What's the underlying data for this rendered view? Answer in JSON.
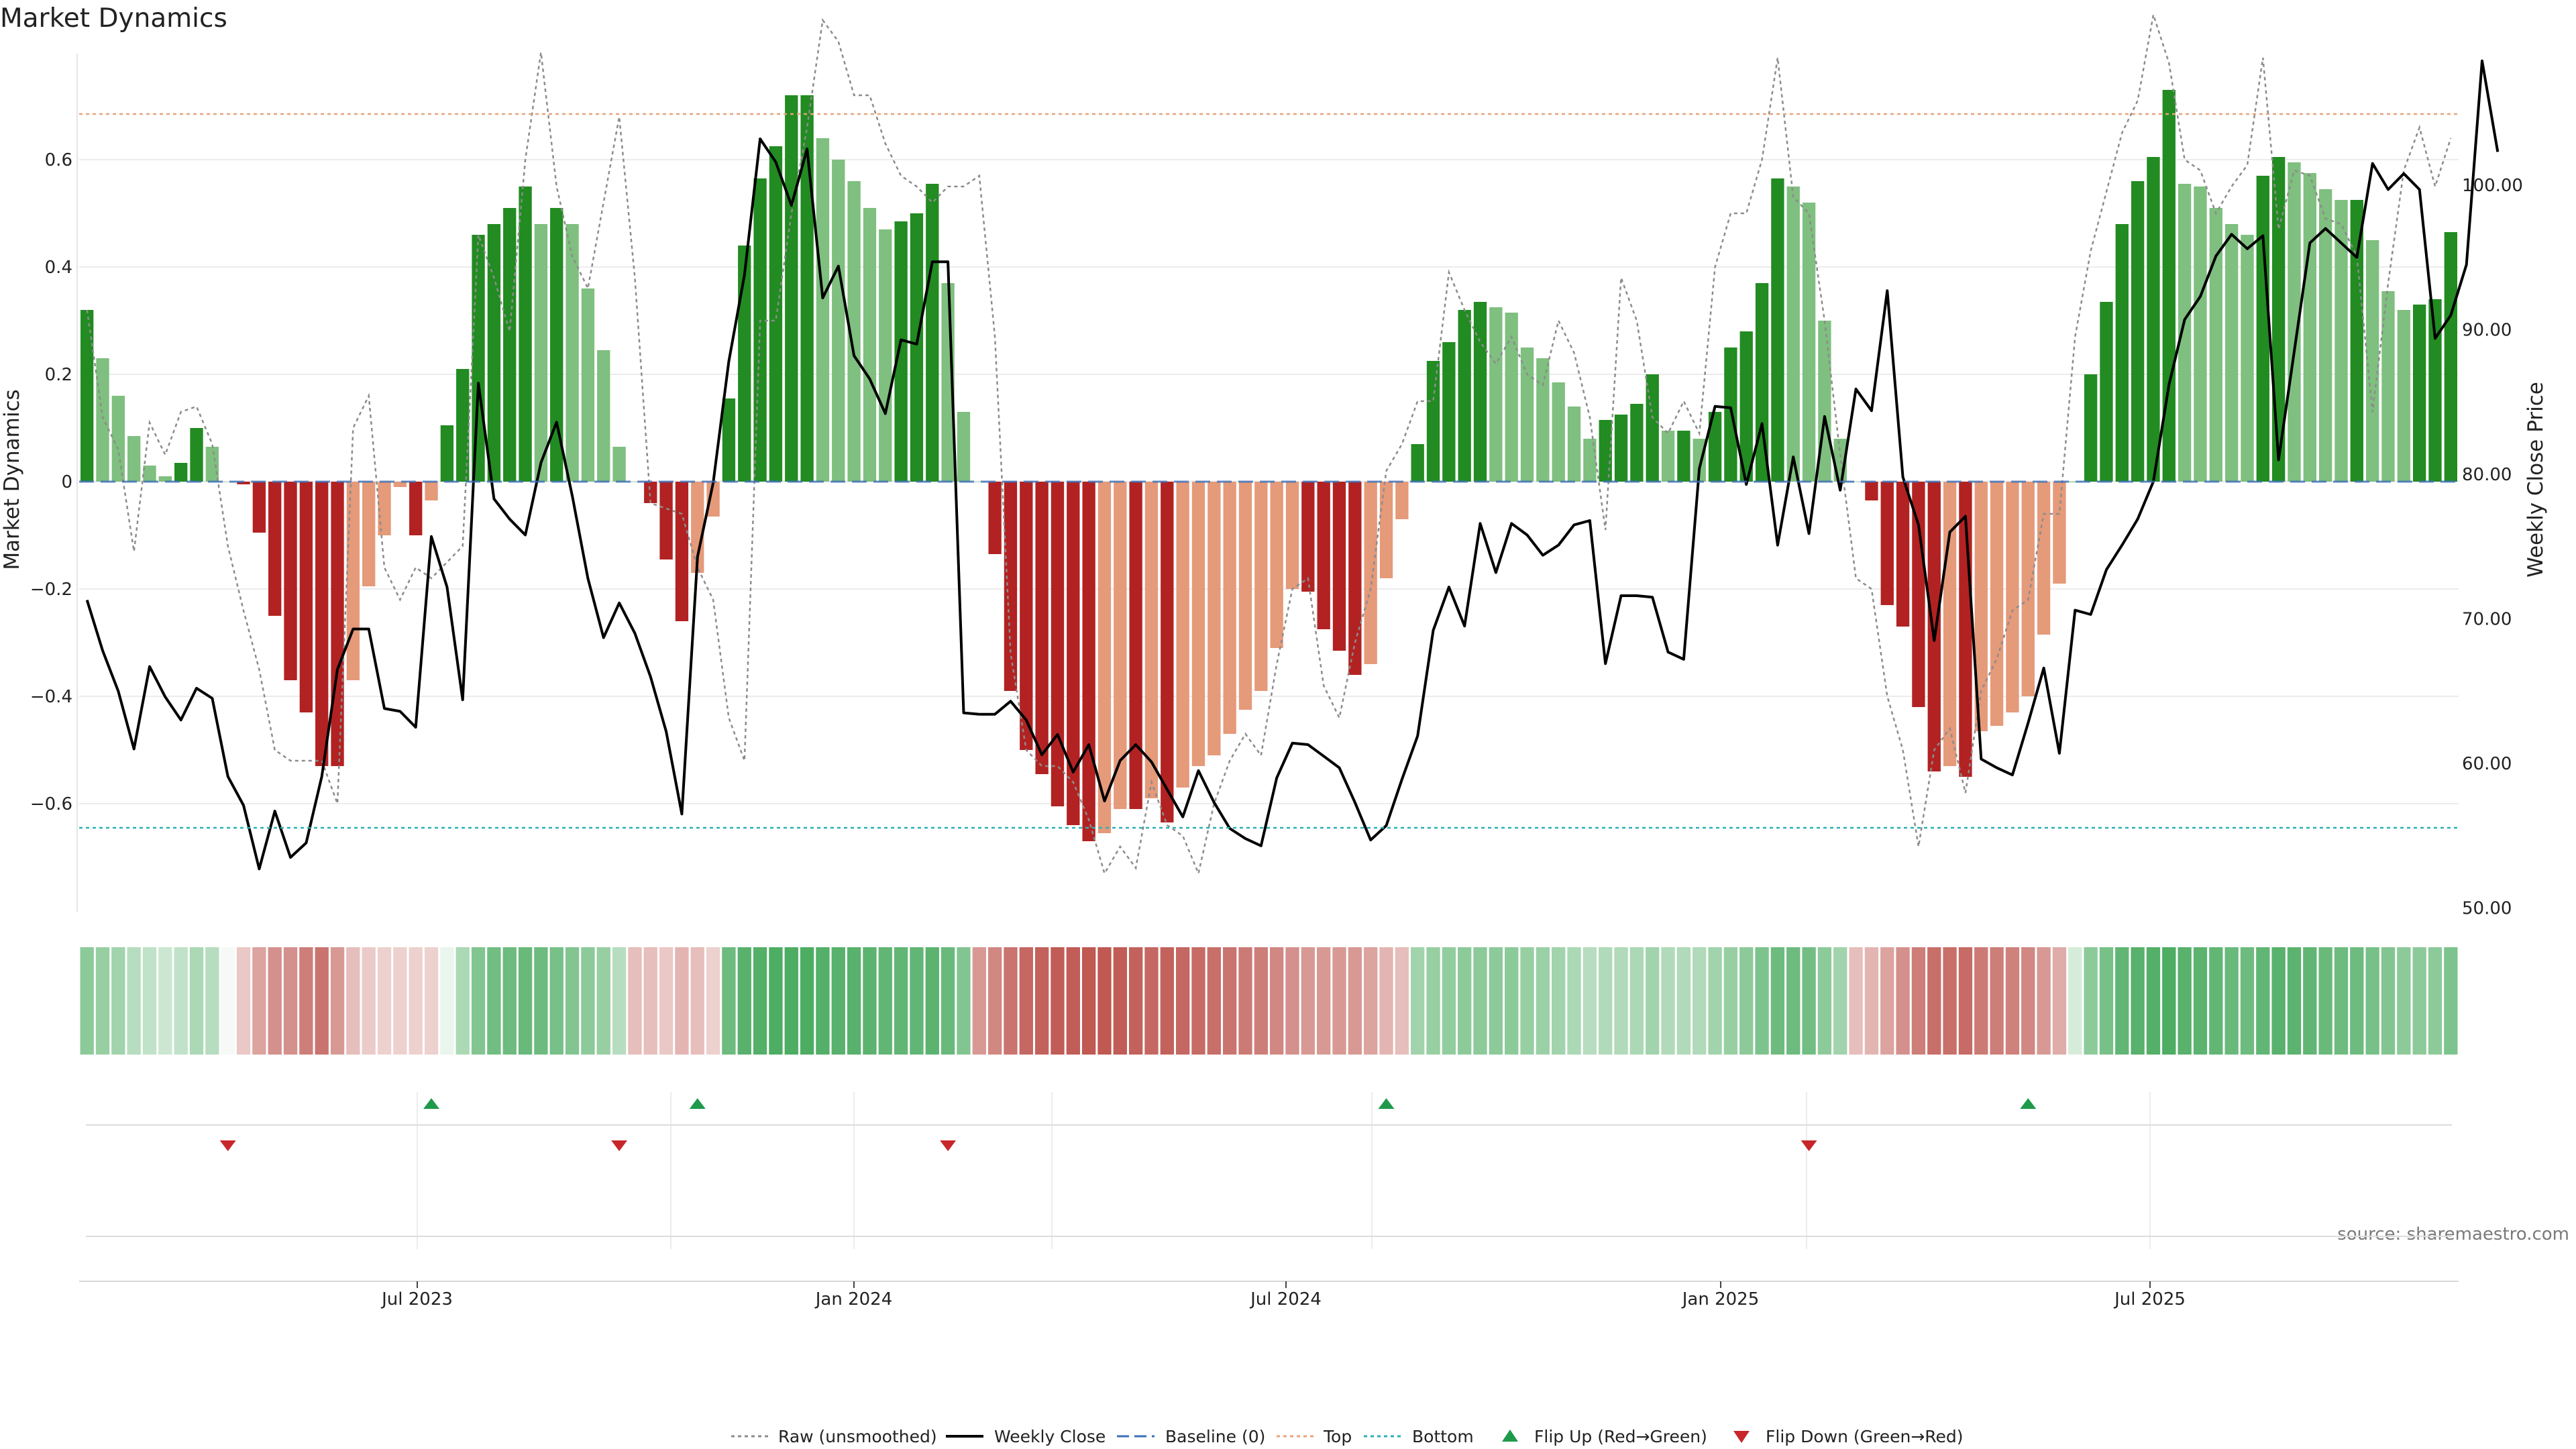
{
  "chart_data": {
    "type": "bar",
    "title": "Market Dynamics",
    "ylabel": "Market Dynamics",
    "y2label": "Weekly Close Price",
    "ylim": [
      -0.8,
      0.8
    ],
    "y2lim": [
      50,
      109
    ],
    "yticks": [
      "0.6",
      "0.4",
      "0.2",
      "0",
      "−0.2",
      "−0.4",
      "−0.6"
    ],
    "y2ticks": [
      "100.00",
      "90.00",
      "80.00",
      "70.00",
      "60.00",
      "50.00"
    ],
    "xticks": [
      "Jul 2023",
      "Jan 2024",
      "Jul 2024",
      "Jan 2025",
      "Jul 2025"
    ],
    "top_level": 0.685,
    "bottom_level": -0.645,
    "source": "source: sharemaestro.com",
    "colors": {
      "strong_up": "#228b22",
      "weak_up": "#7fbf7f",
      "strong_down": "#b22222",
      "weak_down": "#e59a7a",
      "line": "#000000",
      "raw": "#8c8c8c",
      "baseline": "#3b6fb6",
      "top": "#e8a47a",
      "bottom": "#2ab0b8",
      "flip_up": "#1e9a4a",
      "flip_down": "#c8262a"
    },
    "momentum": [
      0.32,
      0.23,
      0.16,
      0.085,
      0.03,
      0.01,
      0.035,
      0.1,
      0.065,
      0.0,
      -0.005,
      -0.095,
      -0.25,
      -0.37,
      -0.43,
      -0.53,
      -0.53,
      -0.37,
      -0.195,
      -0.1,
      -0.01,
      -0.1,
      -0.035,
      0.105,
      0.21,
      0.46,
      0.48,
      0.51,
      0.55,
      0.48,
      0.51,
      0.48,
      0.36,
      0.245,
      0.065,
      0.0,
      -0.04,
      -0.145,
      -0.26,
      -0.17,
      -0.065,
      0.155,
      0.44,
      0.565,
      0.625,
      0.72,
      0.72,
      0.64,
      0.6,
      0.56,
      0.51,
      0.47,
      0.485,
      0.5,
      0.555,
      0.37,
      0.13,
      0.0,
      -0.135,
      -0.39,
      -0.5,
      -0.545,
      -0.605,
      -0.64,
      -0.67,
      -0.655,
      -0.61,
      -0.61,
      -0.59,
      -0.635,
      -0.57,
      -0.53,
      -0.51,
      -0.47,
      -0.425,
      -0.39,
      -0.31,
      -0.2,
      -0.205,
      -0.275,
      -0.315,
      -0.36,
      -0.34,
      -0.18,
      -0.07,
      0.07,
      0.225,
      0.26,
      0.32,
      0.335,
      0.325,
      0.315,
      0.25,
      0.23,
      0.185,
      0.14,
      0.08,
      0.115,
      0.125,
      0.145,
      0.2,
      0.095,
      0.095,
      0.08,
      0.13,
      0.25,
      0.28,
      0.37,
      0.565,
      0.55,
      0.52,
      0.3,
      0.08,
      0.0,
      -0.035,
      -0.23,
      -0.27,
      -0.42,
      -0.54,
      -0.53,
      -0.55,
      -0.465,
      -0.455,
      -0.43,
      -0.4,
      -0.285,
      -0.19,
      0.0,
      0.2,
      0.335,
      0.48,
      0.56,
      0.605,
      0.73,
      0.555,
      0.55,
      0.51,
      0.48,
      0.46,
      0.57,
      0.605,
      0.595,
      0.575,
      0.545,
      0.525,
      0.525,
      0.45,
      0.355,
      0.32,
      0.33,
      0.34,
      0.465
    ],
    "raw": [
      0.32,
      0.12,
      0.06,
      -0.13,
      0.11,
      0.05,
      0.13,
      0.14,
      0.07,
      -0.12,
      -0.24,
      -0.35,
      -0.5,
      -0.52,
      -0.52,
      -0.52,
      -0.6,
      0.1,
      0.16,
      -0.16,
      -0.22,
      -0.16,
      -0.18,
      -0.15,
      -0.12,
      0.46,
      0.38,
      0.28,
      0.6,
      0.8,
      0.55,
      0.42,
      0.36,
      0.52,
      0.68,
      0.38,
      -0.04,
      -0.05,
      -0.06,
      -0.16,
      -0.22,
      -0.44,
      -0.52,
      0.3,
      0.3,
      0.5,
      0.66,
      0.86,
      0.82,
      0.72,
      0.72,
      0.63,
      0.57,
      0.55,
      0.52,
      0.55,
      0.55,
      0.57,
      0.27,
      -0.32,
      -0.5,
      -0.53,
      -0.53,
      -0.56,
      -0.63,
      -0.73,
      -0.68,
      -0.72,
      -0.56,
      -0.64,
      -0.66,
      -0.73,
      -0.6,
      -0.52,
      -0.47,
      -0.51,
      -0.34,
      -0.2,
      -0.18,
      -0.38,
      -0.44,
      -0.3,
      -0.2,
      0.02,
      0.07,
      0.15,
      0.15,
      0.39,
      0.32,
      0.26,
      0.22,
      0.27,
      0.2,
      0.18,
      0.3,
      0.24,
      0.12,
      -0.09,
      0.38,
      0.3,
      0.12,
      0.09,
      0.15,
      0.09,
      0.4,
      0.5,
      0.5,
      0.6,
      0.79,
      0.53,
      0.5,
      0.3,
      0.05,
      -0.18,
      -0.2,
      -0.4,
      -0.5,
      -0.68,
      -0.5,
      -0.46,
      -0.58,
      -0.39,
      -0.33,
      -0.24,
      -0.22,
      -0.06,
      -0.06,
      0.27,
      0.43,
      0.54,
      0.65,
      0.71,
      0.87,
      0.78,
      0.6,
      0.58,
      0.5,
      0.55,
      0.59,
      0.79,
      0.47,
      0.58,
      0.57,
      0.49,
      0.48,
      0.42,
      0.13,
      0.37,
      0.58,
      0.66,
      0.55,
      0.64
    ],
    "close": [
      71.3,
      67.8,
      65,
      61,
      66.7,
      64.6,
      63,
      65.2,
      64.5,
      59.1,
      57.1,
      52.7,
      56.7,
      53.5,
      54.5,
      59.1,
      66.5,
      69.3,
      69.3,
      63.8,
      63.6,
      62.5,
      75.7,
      72.2,
      64.4,
      86.3,
      78.3,
      76.9,
      75.8,
      80.8,
      83.6,
      78.5,
      72.8,
      68.7,
      71.1,
      69,
      66,
      62.2,
      56.5,
      74.3,
      79.4,
      87.8,
      93.8,
      103.2,
      101.6,
      98.6,
      102.5,
      92.2,
      94.4,
      88.2,
      86.6,
      84.2,
      89.3,
      89,
      94.7,
      94.7,
      63.5,
      63.4,
      63.4,
      64.3,
      63,
      60.6,
      62,
      59.4,
      61.3,
      57.4,
      60.2,
      61.3,
      60.1,
      58.2,
      56.3,
      59.5,
      57.3,
      55.5,
      54.8,
      54.3,
      59,
      61.4,
      61.3,
      60.5,
      59.7,
      57.3,
      54.7,
      55.7,
      58.9,
      61.9,
      69.2,
      72.2,
      69.5,
      76.6,
      73.2,
      76.6,
      75.8,
      74.4,
      75.1,
      76.5,
      76.8,
      66.9,
      71.6,
      71.6,
      71.5,
      67.7,
      67.2,
      80.4,
      84.7,
      84.6,
      79.3,
      83.5,
      75.1,
      81.2,
      75.9,
      84,
      78.9,
      85.9,
      84.4,
      92.7,
      79.8,
      76.5,
      68.5,
      76,
      77.1,
      60.3,
      59.7,
      59.2,
      62.8,
      66.6,
      60.7,
      70.6,
      70.3,
      73.4,
      75.1,
      76.9,
      79.5,
      86.2,
      90.7,
      92.3,
      95.1,
      96.6,
      95.6,
      96.5,
      81,
      88.5,
      96,
      97,
      96,
      95,
      101.5,
      99.7,
      100.8,
      99.7,
      89.4,
      91,
      94.5,
      108.6,
      102.3
    ],
    "heatmap": [
      0.55,
      0.5,
      0.45,
      0.35,
      0.3,
      0.25,
      0.3,
      0.4,
      0.35,
      0.05,
      -0.3,
      -0.5,
      -0.6,
      -0.6,
      -0.7,
      -0.75,
      -0.55,
      -0.35,
      -0.28,
      -0.25,
      -0.25,
      -0.25,
      -0.25,
      0.1,
      0.4,
      0.6,
      0.68,
      0.7,
      0.72,
      0.7,
      0.65,
      0.6,
      0.55,
      0.5,
      0.35,
      -0.35,
      -0.35,
      -0.3,
      -0.4,
      -0.35,
      -0.25,
      0.7,
      0.8,
      0.82,
      0.85,
      0.85,
      0.85,
      0.82,
      0.8,
      0.8,
      0.78,
      0.75,
      0.75,
      0.75,
      0.78,
      0.72,
      0.6,
      -0.55,
      -0.65,
      -0.75,
      -0.82,
      -0.85,
      -0.88,
      -0.88,
      -0.9,
      -0.9,
      -0.88,
      -0.85,
      -0.82,
      -0.85,
      -0.82,
      -0.8,
      -0.78,
      -0.75,
      -0.72,
      -0.7,
      -0.65,
      -0.6,
      -0.55,
      -0.55,
      -0.55,
      -0.55,
      -0.5,
      -0.4,
      -0.35,
      0.45,
      0.5,
      0.52,
      0.55,
      0.55,
      0.55,
      0.55,
      0.5,
      0.48,
      0.45,
      0.4,
      0.35,
      0.38,
      0.38,
      0.4,
      0.45,
      0.38,
      0.38,
      0.38,
      0.45,
      0.5,
      0.55,
      0.62,
      0.7,
      0.7,
      0.68,
      0.55,
      0.45,
      -0.35,
      -0.4,
      -0.5,
      -0.6,
      -0.7,
      -0.78,
      -0.78,
      -0.8,
      -0.72,
      -0.7,
      -0.68,
      -0.65,
      -0.55,
      -0.45,
      0.2,
      0.55,
      0.65,
      0.75,
      0.8,
      0.82,
      0.85,
      0.8,
      0.78,
      0.75,
      0.72,
      0.7,
      0.75,
      0.8,
      0.78,
      0.75,
      0.72,
      0.7,
      0.7,
      0.65,
      0.6,
      0.55,
      0.55,
      0.55,
      0.62
    ],
    "flip_up": [
      22,
      39,
      83,
      124
    ],
    "flip_down": [
      9,
      34,
      55,
      110
    ],
    "legend": [
      {
        "label": "Raw (unsmoothed)",
        "kind": "raw"
      },
      {
        "label": "Weekly Close",
        "kind": "line"
      },
      {
        "label": "Baseline (0)",
        "kind": "baseline"
      },
      {
        "label": "Top",
        "kind": "top"
      },
      {
        "label": "Bottom",
        "kind": "bottom"
      },
      {
        "label": "Flip Up (Red→Green)",
        "kind": "flip_up"
      },
      {
        "label": "Flip Down (Green→Red)",
        "kind": "flip_down"
      }
    ]
  }
}
